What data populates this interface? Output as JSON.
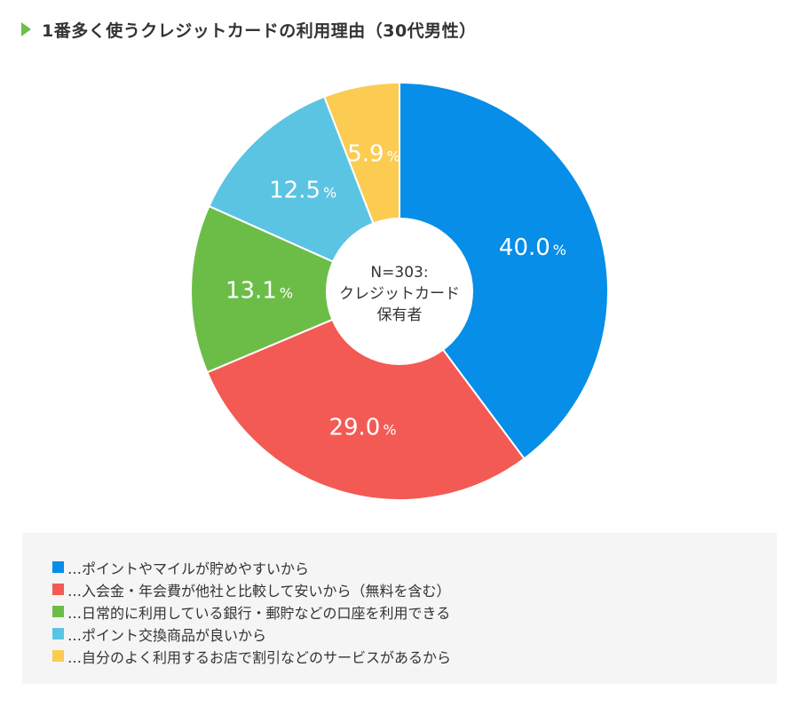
{
  "header": {
    "title": "1番多く使うクレジットカードの利用理由（30代男性）",
    "marker_color": "#6cbf4a"
  },
  "chart_data": {
    "type": "pie",
    "title": "1番多く使うクレジットカードの利用理由（30代男性）",
    "center_label": [
      "N=303:",
      "クレジットカード",
      "保有者"
    ],
    "percent_sign": "%",
    "slices": [
      {
        "value": 40.0,
        "label": "40.0",
        "color": "#068ee8",
        "legend": "…ポイントやマイルが貯めやすいから"
      },
      {
        "value": 29.0,
        "label": "29.0",
        "color": "#f35a54",
        "legend": "…入会金・年会費が他社と比較して安いから（無料を含む）"
      },
      {
        "value": 13.1,
        "label": "13.1",
        "color": "#6cbd48",
        "legend": "…日常的に利用している銀行・郵貯などの口座を利用できる"
      },
      {
        "value": 12.5,
        "label": "12.5",
        "color": "#5bc4e2",
        "legend": "…ポイント交換商品が良いから"
      },
      {
        "value": 5.9,
        "label": "5.9",
        "color": "#fccc52",
        "legend": "…自分のよく利用するお店で割引などのサービスがあるから"
      }
    ]
  }
}
